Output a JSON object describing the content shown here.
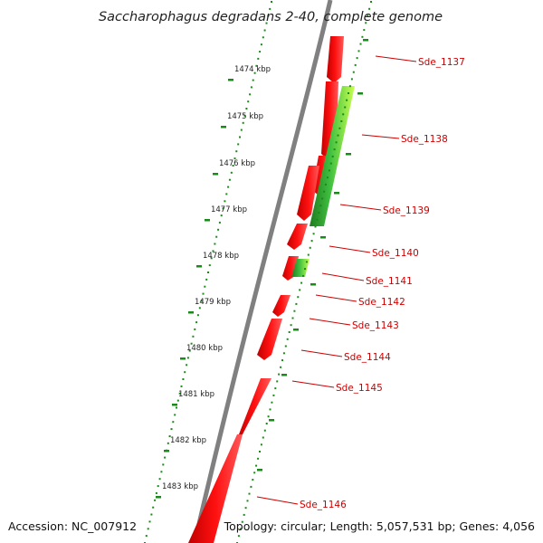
{
  "title": "Saccharophagus degradans 2-40, complete genome",
  "footer": {
    "accession": "Accession: NC_007912",
    "topology": "Topology: circular; Length: 5,057,531 bp; Genes: 4,056"
  },
  "colors": {
    "backbone": "#808080",
    "forward_cds": "#ff0000",
    "reverse_cds_dark": "#2e9e2e",
    "reverse_cds_light": "#b6ff3a",
    "ticks": "#1a8a1a",
    "label": "#cc0000"
  },
  "ruler_ticks": [
    {
      "label": "1474 kbp"
    },
    {
      "label": "1475 kbp"
    },
    {
      "label": "1476 kbp"
    },
    {
      "label": "1477 kbp"
    },
    {
      "label": "1478 kbp"
    },
    {
      "label": "1479 kbp"
    },
    {
      "label": "1480 kbp"
    },
    {
      "label": "1481 kbp"
    },
    {
      "label": "1482 kbp"
    },
    {
      "label": "1483 kbp"
    }
  ],
  "genes": [
    {
      "label": "Sde_1137"
    },
    {
      "label": "Sde_1138"
    },
    {
      "label": "Sde_1139"
    },
    {
      "label": "Sde_1140"
    },
    {
      "label": "Sde_1141"
    },
    {
      "label": "Sde_1142"
    },
    {
      "label": "Sde_1143"
    },
    {
      "label": "Sde_1144"
    },
    {
      "label": "Sde_1145"
    },
    {
      "label": "Sde_1146"
    }
  ]
}
